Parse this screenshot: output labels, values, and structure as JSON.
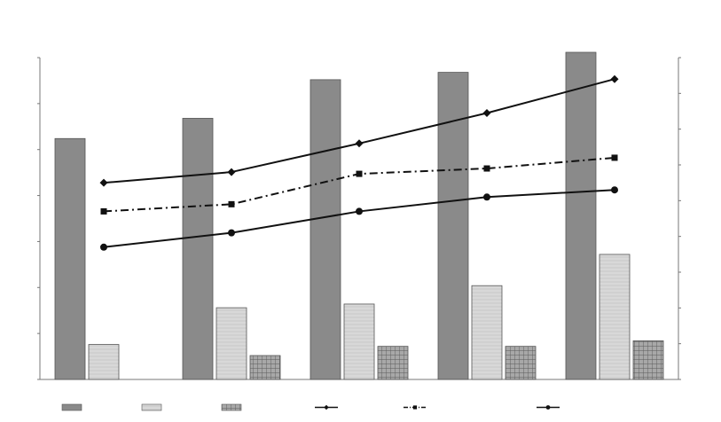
{
  "chart_data": {
    "type": "bar",
    "title": "",
    "categories": [
      "",
      "",
      "",
      "",
      ""
    ],
    "left_axis": {
      "label": "",
      "ylim": [
        0,
        17500
      ],
      "ticks": [
        0,
        2500,
        5000,
        7500,
        10000,
        12500,
        15000,
        17500
      ],
      "tick_labels": [
        "",
        "",
        "",
        "",
        "",
        "",
        "",
        ""
      ]
    },
    "right_axis": {
      "label": "",
      "ylim": [
        0,
        1800
      ],
      "ticks": [
        0,
        200,
        400,
        600,
        800,
        1000,
        1200,
        1400,
        1600,
        1800
      ],
      "tick_labels": [
        "",
        "",
        "",
        "",
        "",
        "",
        "",
        "",
        "",
        ""
      ]
    },
    "bar_series": [
      {
        "name": "",
        "axis": "left",
        "color": "#8a8a8a",
        "pattern": "solid",
        "values": [
          13100,
          14200,
          16300,
          16700,
          18000
        ]
      },
      {
        "name": "",
        "axis": "left",
        "color": "#cfcfcf",
        "pattern": "light",
        "values": [
          1900,
          3900,
          4100,
          5100,
          6800
        ]
      },
      {
        "name": "",
        "axis": "left",
        "color": "#9a9a9a",
        "pattern": "grid",
        "values": [
          0,
          1300,
          1800,
          1800,
          2100
        ]
      }
    ],
    "line_series": [
      {
        "name": "",
        "axis": "right",
        "style": "solid",
        "marker": "diamond",
        "values": [
          1100,
          1160,
          1320,
          1490,
          1680
        ]
      },
      {
        "name": "",
        "axis": "right",
        "style": "dashdot",
        "marker": "square",
        "values": [
          940,
          980,
          1150,
          1180,
          1240
        ]
      },
      {
        "name": "",
        "axis": "right",
        "style": "solid",
        "marker": "circle",
        "values": [
          740,
          820,
          940,
          1020,
          1060
        ]
      }
    ],
    "grid": false,
    "legend_position": "bottom"
  }
}
